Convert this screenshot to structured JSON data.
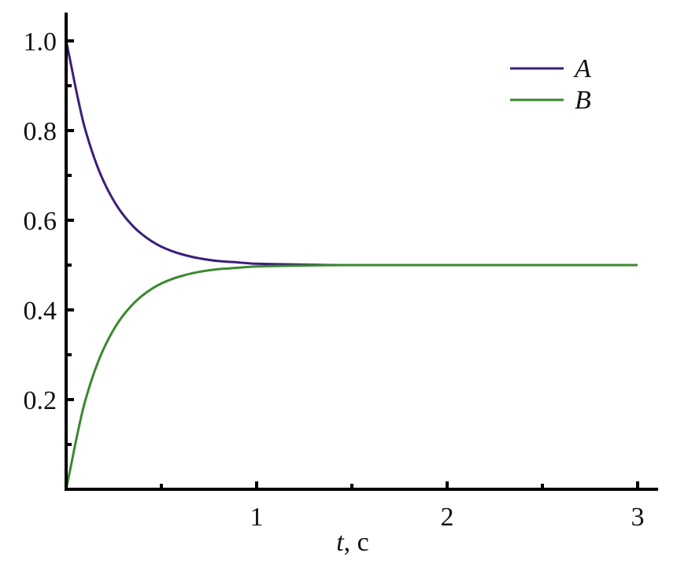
{
  "chart_data": {
    "type": "line",
    "title": "",
    "xlabel_var": "t",
    "xlabel_unit": ", c",
    "ylabel": "",
    "xlim": [
      0,
      3.1
    ],
    "ylim": [
      0,
      1.06
    ],
    "x_ticks_major": [
      1,
      2,
      3
    ],
    "x_tick_labels": [
      "1",
      "2",
      "3"
    ],
    "x_ticks_minor": [
      0.5,
      1.5,
      2.5
    ],
    "y_ticks_major": [
      0.2,
      0.4,
      0.6,
      0.8,
      1.0
    ],
    "y_tick_labels": [
      "0.2",
      "0.4",
      "0.6",
      "0.8",
      "1.0"
    ],
    "y_ticks_minor": [
      0.1,
      0.3,
      0.5,
      0.7,
      0.9
    ],
    "grid": false,
    "legend_position": "top-right",
    "x": [
      0,
      0.1,
      0.2,
      0.3,
      0.4,
      0.5,
      0.6,
      0.7,
      0.8,
      0.9,
      1.0,
      1.5,
      2.0,
      2.5,
      3.0
    ],
    "series": [
      {
        "name": "A",
        "color": "#3b1f7a",
        "values": [
          1.0,
          0.803,
          0.684,
          0.612,
          0.568,
          0.541,
          0.525,
          0.515,
          0.509,
          0.506,
          0.503,
          0.5,
          0.5,
          0.5,
          0.5
        ]
      },
      {
        "name": "B",
        "color": "#3a8a2e",
        "values": [
          0.0,
          0.197,
          0.316,
          0.388,
          0.432,
          0.459,
          0.475,
          0.485,
          0.491,
          0.494,
          0.497,
          0.5,
          0.5,
          0.5,
          0.5
        ]
      }
    ]
  }
}
